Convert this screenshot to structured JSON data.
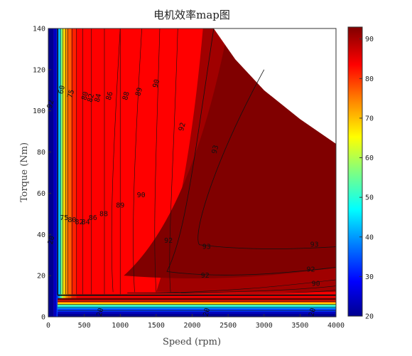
{
  "chart_data": {
    "type": "contour",
    "title": "电机效率map图",
    "xlabel": "Speed (rpm)",
    "ylabel": "Torque (Nm)",
    "xlim": [
      0,
      4000
    ],
    "ylim": [
      0,
      140
    ],
    "xticks": [
      0,
      500,
      1000,
      1500,
      2000,
      2500,
      3000,
      3500,
      4000
    ],
    "yticks": [
      0,
      20,
      40,
      60,
      80,
      100,
      120,
      140
    ],
    "colorbar": {
      "colormap": "jet",
      "range": [
        20,
        93
      ],
      "ticks": [
        20,
        30,
        40,
        50,
        60,
        70,
        80,
        90
      ],
      "colors": [
        "#00008f",
        "#0000ff",
        "#0080ff",
        "#00ffff",
        "#80ff80",
        "#ffff00",
        "#ff8000",
        "#ff0000",
        "#800000"
      ]
    },
    "levels": [
      20,
      60,
      75,
      80,
      82,
      84,
      86,
      88,
      89,
      90,
      92,
      93
    ],
    "max_power_boundary": [
      [
        2300,
        140
      ],
      [
        2600,
        125
      ],
      [
        3000,
        110
      ],
      [
        3500,
        96
      ],
      [
        4000,
        84
      ]
    ],
    "contour_labels_top": [
      {
        "text": "60",
        "x": 215,
        "y": 110
      },
      {
        "text": "75",
        "x": 345,
        "y": 108
      },
      {
        "text": "80",
        "x": 540,
        "y": 107
      },
      {
        "text": "82",
        "x": 620,
        "y": 106
      },
      {
        "text": "84",
        "x": 720,
        "y": 106
      },
      {
        "text": "86",
        "x": 880,
        "y": 107
      },
      {
        "text": "88",
        "x": 1110,
        "y": 107
      },
      {
        "text": "89",
        "x": 1290,
        "y": 109
      },
      {
        "text": "90",
        "x": 1530,
        "y": 113
      },
      {
        "text": "92",
        "x": 1890,
        "y": 92
      },
      {
        "text": "93",
        "x": 2350,
        "y": 81
      }
    ],
    "contour_labels_mid": [
      {
        "text": "75",
        "x": 220,
        "y": 47
      },
      {
        "text": "80",
        "x": 330,
        "y": 46
      },
      {
        "text": "82",
        "x": 430,
        "y": 45
      },
      {
        "text": "84",
        "x": 520,
        "y": 45
      },
      {
        "text": "86",
        "x": 620,
        "y": 47
      },
      {
        "text": "88",
        "x": 770,
        "y": 49
      },
      {
        "text": "89",
        "x": 1000,
        "y": 53
      },
      {
        "text": "90",
        "x": 1290,
        "y": 58
      },
      {
        "text": "92",
        "x": 1670,
        "y": 36
      },
      {
        "text": "93",
        "x": 2200,
        "y": 33
      },
      {
        "text": "93",
        "x": 3700,
        "y": 34
      },
      {
        "text": "92",
        "x": 2180,
        "y": 19
      },
      {
        "text": "92",
        "x": 3650,
        "y": 22
      },
      {
        "text": "90",
        "x": 3720,
        "y": 15
      }
    ],
    "contour_labels_left": [
      {
        "text": "92",
        "x": 60,
        "y": 103
      },
      {
        "text": "20",
        "x": 70,
        "y": 37
      }
    ],
    "contour_labels_bottom": [
      {
        "text": "20",
        "x": 750,
        "y": 2
      },
      {
        "text": "20",
        "x": 2230,
        "y": 2
      },
      {
        "text": "20",
        "x": 3700,
        "y": 2
      }
    ]
  }
}
